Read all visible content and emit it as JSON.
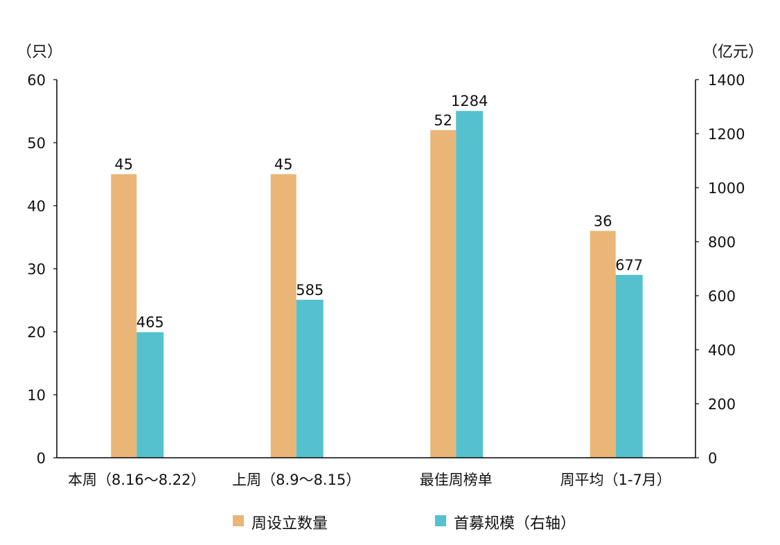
{
  "chart_data": {
    "type": "bar",
    "title": "",
    "categories": [
      "本周（8.16～8.22）",
      "上周（8.9～8.15）",
      "最佳周榜单",
      "周平均（1-7月）"
    ],
    "series": [
      {
        "name": "周设立数量",
        "axis": "left",
        "color": "#E9B678",
        "values": [
          45,
          45,
          52,
          36
        ]
      },
      {
        "name": "首募规模（右轴）",
        "axis": "right",
        "color": "#55C1CF",
        "values": [
          465,
          585,
          1284,
          677
        ]
      }
    ],
    "left_axis": {
      "unit_label": "（只）",
      "ylim": [
        0,
        60
      ],
      "ticks": [
        "0",
        "10",
        "20",
        "30",
        "40",
        "50",
        "60"
      ]
    },
    "right_axis": {
      "unit_label": "（亿元）",
      "ylim": [
        0,
        1400
      ],
      "ticks": [
        "0",
        "200",
        "400",
        "600",
        "800",
        "1000",
        "1200",
        "1400"
      ]
    },
    "legend_position": "bottom",
    "grid": false
  }
}
